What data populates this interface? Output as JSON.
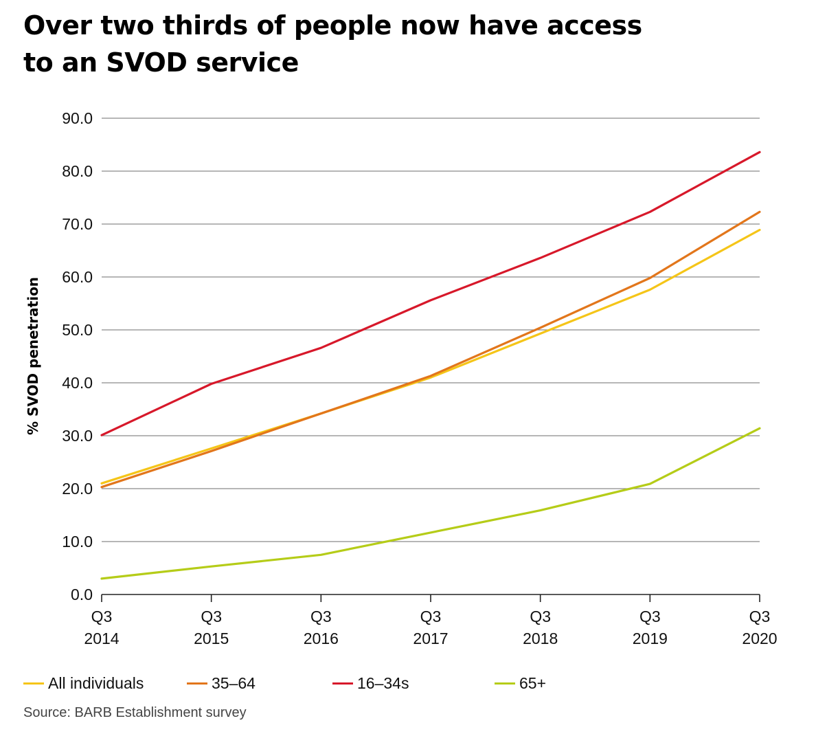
{
  "title_lines": [
    "Over two thirds of people now have access",
    "to an SVOD service"
  ],
  "source": "Source: BARB Establishment survey",
  "colors": {
    "All individuals": "#F5C518",
    "35–64": "#E2761B",
    "16–34s": "#D7182A",
    "65+": "#B5CC18",
    "grid": "#8a8a8a",
    "axis": "#222222"
  },
  "chart_data": {
    "type": "line",
    "x": [
      [
        "Q3",
        "2014"
      ],
      [
        "Q3",
        "2015"
      ],
      [
        "Q3",
        "2016"
      ],
      [
        "Q3",
        "2017"
      ],
      [
        "Q3",
        "2018"
      ],
      [
        "Q3",
        "2019"
      ],
      [
        "Q3",
        "2020"
      ]
    ],
    "ylabel": "% SVOD penetration",
    "ylim": [
      0,
      90
    ],
    "yticks": [
      "0.0",
      "10.0",
      "20.0",
      "30.0",
      "40.0",
      "50.0",
      "60.0",
      "70.0",
      "80.0",
      "90.0"
    ],
    "grid": true,
    "legend_position": "bottom",
    "series": [
      {
        "name": "All individuals",
        "values": [
          21.0,
          27.6,
          34.2,
          41.0,
          49.3,
          57.6,
          68.9
        ]
      },
      {
        "name": "35–64",
        "values": [
          20.3,
          27.1,
          34.2,
          41.3,
          50.4,
          59.8,
          72.3
        ]
      },
      {
        "name": "16–34s",
        "values": [
          30.1,
          39.8,
          46.6,
          55.6,
          63.6,
          72.3,
          83.6
        ]
      },
      {
        "name": "65+",
        "values": [
          3.0,
          5.3,
          7.5,
          11.7,
          15.9,
          20.9,
          31.4
        ]
      }
    ]
  }
}
